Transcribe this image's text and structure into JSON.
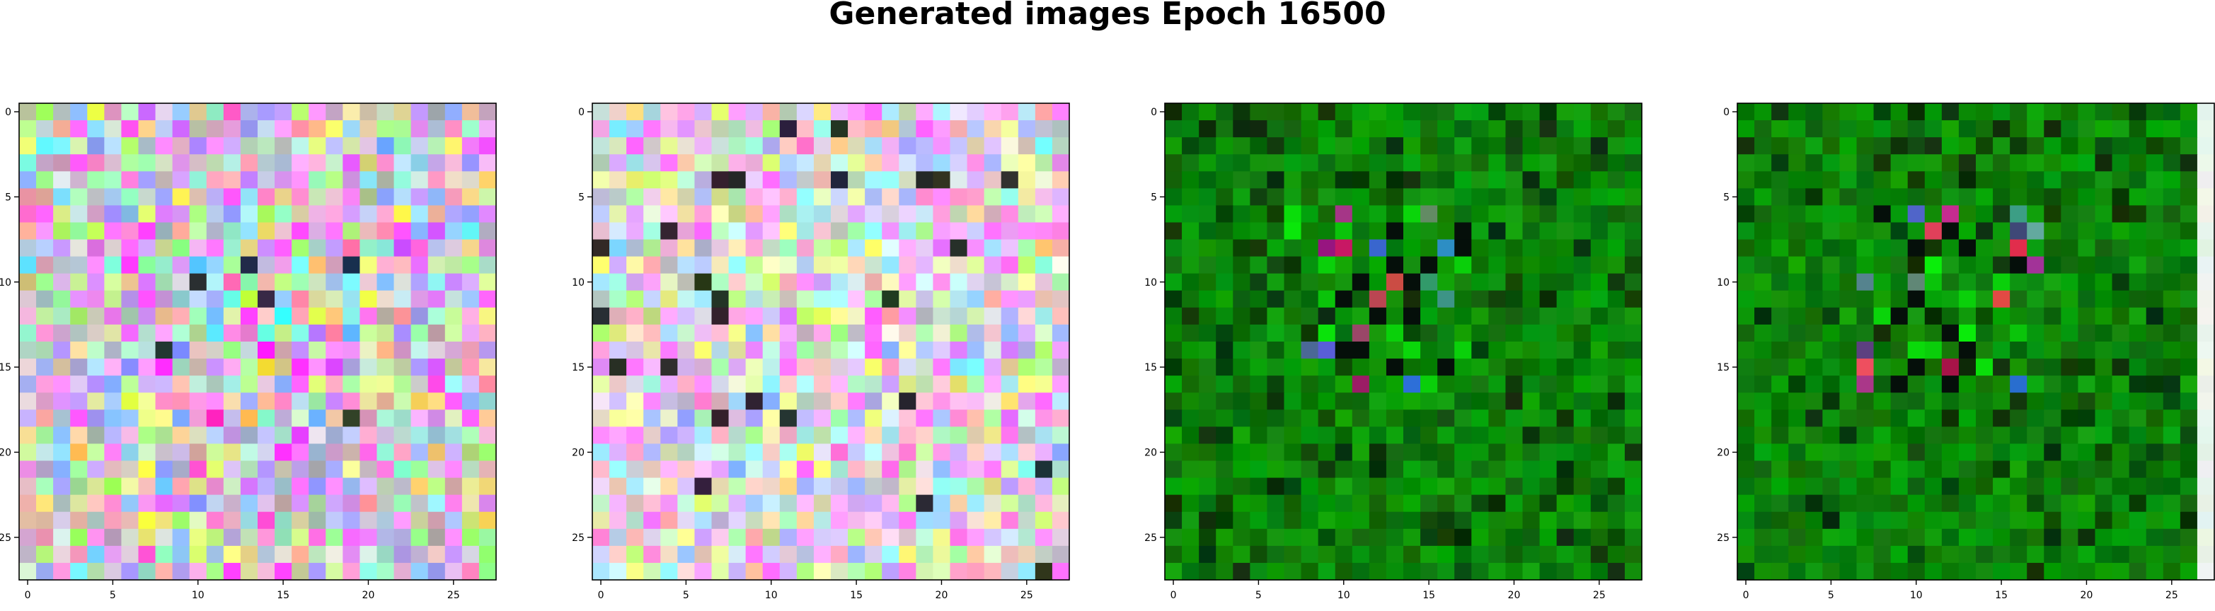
{
  "figure": {
    "title": "Generated images Epoch 16500"
  },
  "chart_data": [
    {
      "type": "heatmap",
      "xlabel": "",
      "ylabel": "",
      "xlim": [
        -0.5,
        27.5
      ],
      "ylim": [
        27.5,
        -0.5
      ],
      "xticks": [
        0,
        5,
        10,
        15,
        20,
        25
      ],
      "yticks": [
        0,
        5,
        10,
        15,
        20,
        25
      ],
      "grid_size": [
        28,
        28
      ],
      "palette": "pastel",
      "seed": 11
    },
    {
      "type": "heatmap",
      "xlabel": "",
      "ylabel": "",
      "xlim": [
        -0.5,
        27.5
      ],
      "ylim": [
        27.5,
        -0.5
      ],
      "xticks": [
        0,
        5,
        10,
        15,
        20,
        25
      ],
      "yticks": [
        0,
        5,
        10,
        15,
        20,
        25
      ],
      "grid_size": [
        28,
        28
      ],
      "palette": "pastel-light",
      "seed": 23
    },
    {
      "type": "heatmap",
      "xlabel": "",
      "ylabel": "",
      "xlim": [
        -0.5,
        27.5
      ],
      "ylim": [
        27.5,
        -0.5
      ],
      "xticks": [
        0,
        5,
        10,
        15,
        20,
        25
      ],
      "yticks": [
        0,
        5,
        10,
        15,
        20,
        25
      ],
      "grid_size": [
        28,
        28
      ],
      "palette": "green",
      "seed": 37
    },
    {
      "type": "heatmap",
      "xlabel": "",
      "ylabel": "",
      "xlim": [
        -0.5,
        27.5
      ],
      "ylim": [
        27.5,
        -0.5
      ],
      "xticks": [
        0,
        5,
        10,
        15,
        20,
        25
      ],
      "yticks": [
        0,
        5,
        10,
        15,
        20,
        25
      ],
      "grid_size": [
        28,
        28
      ],
      "palette": "green",
      "seed": 53
    }
  ]
}
